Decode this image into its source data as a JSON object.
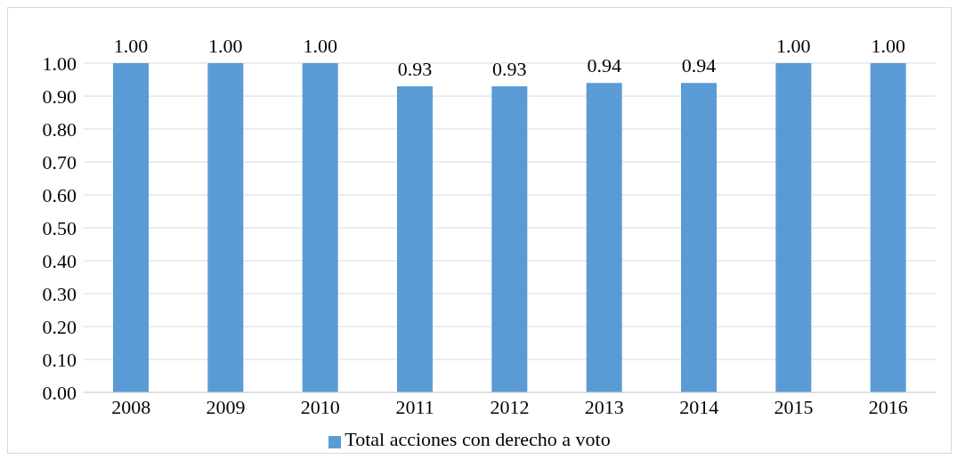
{
  "chart_data": {
    "type": "bar",
    "categories": [
      "2008",
      "2009",
      "2010",
      "2011",
      "2012",
      "2013",
      "2014",
      "2015",
      "2016"
    ],
    "series": [
      {
        "name": "Total acciones con derecho a voto",
        "color": "#5b9bd5",
        "values": [
          1,
          1,
          1,
          0.93,
          0.93,
          0.94,
          0.94,
          1,
          1
        ],
        "value_labels": [
          "1.00",
          "1.00",
          "1.00",
          "0.93",
          "0.93",
          "0.94",
          "0.94",
          "1.00",
          "1.00"
        ]
      }
    ],
    "ylim": [
      0,
      1
    ],
    "yticks": [
      {
        "value": 0,
        "label": "0.00"
      },
      {
        "value": 0.1,
        "label": "0.10"
      },
      {
        "value": 0.2,
        "label": "0.20"
      },
      {
        "value": 0.3,
        "label": "0.30"
      },
      {
        "value": 0.4,
        "label": "0.40"
      },
      {
        "value": 0.5,
        "label": "0.50"
      },
      {
        "value": 0.6,
        "label": "0.60"
      },
      {
        "value": 0.7,
        "label": "0.70"
      },
      {
        "value": 0.8,
        "label": "0.80"
      },
      {
        "value": 0.9,
        "label": "0.90"
      },
      {
        "value": 1,
        "label": "1.00"
      }
    ],
    "grid": "y",
    "legend": "bottom"
  }
}
